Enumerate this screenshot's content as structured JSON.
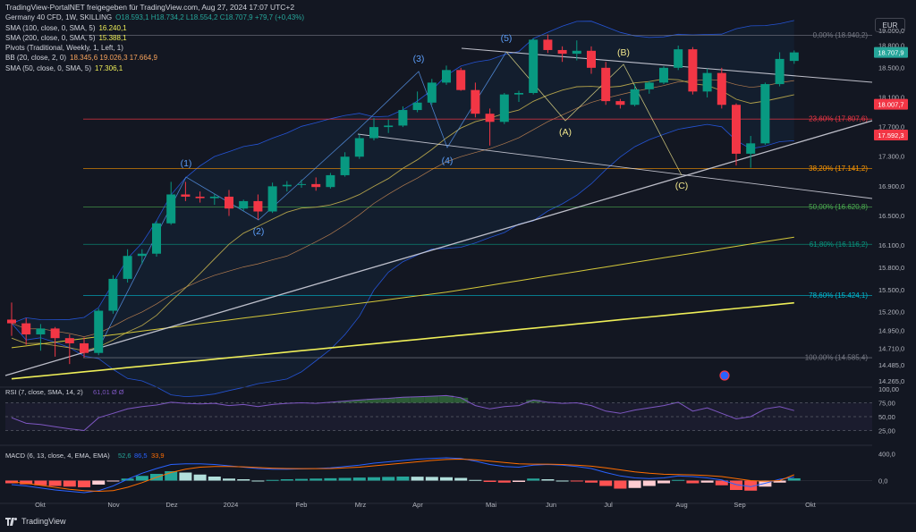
{
  "header": {
    "title": "TradingView-PortalNET freigegeben für TradingView.com, Aug 27, 2024 17:07 UTC+2",
    "legend": [
      {
        "label": "Germany 40 CFD, 1W, SKILLING",
        "values": "O18.593,1  H18.734,2  L18.554,2  C18.707,9  +79,7 (+0,43%)",
        "color": "#26a69a"
      },
      {
        "label": "SMA (100, close, 0, SMA, 5)",
        "values": "16.240,1",
        "color": "#eeee58"
      },
      {
        "label": "SMA (200, close, 0, SMA, 5)",
        "values": "15.388,1",
        "color": "#eeee58"
      },
      {
        "label": "Pivots (Traditional, Weekly, 1, Left, 1)",
        "values": "",
        "color": "#d1d4dc"
      },
      {
        "label": "BB (20, close, 2, 0)",
        "values": "18.345,6  19.026,3  17.664,9",
        "color": "#f7a35c"
      },
      {
        "label": "SMA (50, close, 0, SMA, 5)",
        "values": "17.306,1",
        "color": "#eeee58"
      }
    ]
  },
  "currency": "EUR",
  "footer": {
    "brand": "TradingView"
  },
  "chart_data": [
    {
      "type": "candlestick",
      "title": "Germany 40 CFD, 1W",
      "y_scale": "linear",
      "ylim": [
        14200,
        19150
      ],
      "x_labels": [
        "Okt",
        "Nov",
        "Dez",
        "2024",
        "Feb",
        "Mrz",
        "Apr",
        "Mai",
        "Jun",
        "Jul",
        "Aug",
        "Sep",
        "Okt"
      ],
      "y_ticks": [
        "19.000,0",
        "18.800,0",
        "18.500,0",
        "18.100,0",
        "17.700,0",
        "17.300,0",
        "16.900,0",
        "16.500,0",
        "16.100,0",
        "15.800,0",
        "15.500,0",
        "15.200,0",
        "14.950,0",
        "14.710,0",
        "14.485,0",
        "14.265,0"
      ],
      "price_labels": [
        {
          "value": "18.707,9",
          "color": "#26a69a"
        },
        {
          "value": "18.007,7",
          "color": "#f23645"
        },
        {
          "value": "17.592,3",
          "color": "#f23645"
        }
      ],
      "fibonacci": [
        {
          "label": "0,00% (18.940,2)",
          "color": "#787b86"
        },
        {
          "label": "23,60% (17.807,6)",
          "color": "#f23645"
        },
        {
          "label": "38,20% (17.141,2)",
          "color": "#ff9800"
        },
        {
          "label": "50,00% (16.620,8)",
          "color": "#4caf50"
        },
        {
          "label": "61,80% (16.116,2)",
          "color": "#089981"
        },
        {
          "label": "78,60% (15.424,1)",
          "color": "#00bcd4"
        },
        {
          "label": "100,00% (14.585,4)",
          "color": "#787b86"
        }
      ],
      "wave_labels": [
        {
          "text": "(1)",
          "color": "#5b9cf6"
        },
        {
          "text": "(2)",
          "color": "#5b9cf6"
        },
        {
          "text": "(3)",
          "color": "#5b9cf6"
        },
        {
          "text": "(4)",
          "color": "#5b9cf6"
        },
        {
          "text": "(5)",
          "color": "#5b9cf6"
        },
        {
          "text": "(A)",
          "color": "#f0e68c"
        },
        {
          "text": "(B)",
          "color": "#f0e68c"
        },
        {
          "text": "(C)",
          "color": "#f0e68c"
        }
      ],
      "candles": [
        [
          15100,
          15330,
          14880,
          15050
        ],
        [
          15050,
          15120,
          14760,
          14900
        ],
        [
          14900,
          15040,
          14680,
          14980
        ],
        [
          14980,
          15000,
          14600,
          14850
        ],
        [
          14850,
          14900,
          14500,
          14780
        ],
        [
          14780,
          14860,
          14590,
          14650
        ],
        [
          14650,
          15250,
          14620,
          15220
        ],
        [
          15220,
          15700,
          15180,
          15650
        ],
        [
          15650,
          16050,
          15600,
          15960
        ],
        [
          15960,
          16050,
          15850,
          15990
        ],
        [
          15990,
          16430,
          15950,
          16400
        ],
        [
          16400,
          16960,
          16380,
          16790
        ],
        [
          16790,
          16960,
          16700,
          16760
        ],
        [
          16760,
          16830,
          16680,
          16740
        ],
        [
          16740,
          16800,
          16650,
          16760
        ],
        [
          16760,
          16850,
          16500,
          16600
        ],
        [
          16600,
          16720,
          16570,
          16700
        ],
        [
          16700,
          16790,
          16450,
          16560
        ],
        [
          16560,
          16950,
          16540,
          16900
        ],
        [
          16900,
          16970,
          16830,
          16920
        ],
        [
          16920,
          16990,
          16880,
          16930
        ],
        [
          16930,
          17020,
          16840,
          16890
        ],
        [
          16890,
          17080,
          16870,
          17050
        ],
        [
          17050,
          17360,
          17030,
          17300
        ],
        [
          17300,
          17600,
          17270,
          17550
        ],
        [
          17550,
          17820,
          17520,
          17700
        ],
        [
          17700,
          17800,
          17620,
          17720
        ],
        [
          17720,
          17980,
          17700,
          17930
        ],
        [
          17930,
          18180,
          17900,
          18030
        ],
        [
          18030,
          18350,
          18000,
          18300
        ],
        [
          18300,
          18530,
          18270,
          18470
        ],
        [
          18470,
          18500,
          18190,
          18200
        ],
        [
          18200,
          18300,
          17830,
          17880
        ],
        [
          17880,
          17950,
          17450,
          17770
        ],
        [
          17770,
          18160,
          17740,
          18140
        ],
        [
          18140,
          18190,
          18040,
          18160
        ],
        [
          18160,
          18900,
          18140,
          18880
        ],
        [
          18880,
          18950,
          18700,
          18740
        ],
        [
          18740,
          18790,
          18580,
          18690
        ],
        [
          18690,
          18870,
          18600,
          18730
        ],
        [
          18730,
          18790,
          18420,
          18500
        ],
        [
          18500,
          18580,
          18000,
          18050
        ],
        [
          18050,
          18080,
          17950,
          18000
        ],
        [
          18000,
          18280,
          17980,
          18210
        ],
        [
          18210,
          18320,
          18150,
          18300
        ],
        [
          18300,
          18520,
          18280,
          18500
        ],
        [
          18500,
          18800,
          18470,
          18750
        ],
        [
          18750,
          18780,
          18140,
          18180
        ],
        [
          18180,
          18490,
          18100,
          18430
        ],
        [
          18430,
          18500,
          17950,
          18000
        ],
        [
          18000,
          18020,
          17180,
          17340
        ],
        [
          17340,
          17580,
          17150,
          17480
        ],
        [
          17480,
          18300,
          17460,
          18280
        ],
        [
          18280,
          18710,
          18250,
          18620
        ],
        [
          18593.1,
          18734.2,
          18554.2,
          18707.9
        ]
      ]
    },
    {
      "type": "line",
      "title": "RSI (7, close, SMA, 14, 2)",
      "legend_values": "61,01  Ø  Ø",
      "y_ticks": [
        "100,00",
        "75,00",
        "50,00",
        "25,00"
      ],
      "ylim": [
        0,
        100
      ],
      "values": [
        48,
        38,
        36,
        32,
        28,
        25,
        48,
        56,
        64,
        68,
        71,
        76,
        74,
        73,
        74,
        70,
        72,
        68,
        72,
        74,
        75,
        74,
        76,
        78,
        80,
        82,
        83,
        85,
        86,
        87,
        88,
        84,
        70,
        64,
        68,
        70,
        80,
        76,
        74,
        75,
        70,
        60,
        56,
        62,
        66,
        70,
        76,
        60,
        66,
        56,
        46,
        50,
        64,
        68,
        61
      ]
    },
    {
      "type": "bar",
      "title": "MACD (6, 13, close, 4, EMA, EMA)",
      "legend_values": [
        "52,6",
        "86,5",
        "33,9"
      ],
      "y_ticks": [
        "400,0",
        "0,0"
      ],
      "ylim": [
        -300,
        500
      ],
      "histogram": [
        -40,
        -55,
        -70,
        -80,
        -90,
        -100,
        -60,
        -10,
        30,
        70,
        100,
        140,
        120,
        90,
        60,
        30,
        20,
        0,
        10,
        20,
        25,
        30,
        35,
        40,
        45,
        50,
        55,
        60,
        58,
        55,
        50,
        40,
        10,
        -20,
        -30,
        -20,
        30,
        20,
        0,
        -10,
        -30,
        -80,
        -120,
        -110,
        -80,
        -40,
        10,
        -40,
        -30,
        -70,
        -140,
        -150,
        -90,
        -30,
        33.9
      ],
      "macd": [
        -60,
        -80,
        -110,
        -140,
        -160,
        -180,
        -150,
        -80,
        20,
        110,
        180,
        240,
        250,
        250,
        240,
        220,
        200,
        180,
        170,
        170,
        175,
        180,
        190,
        210,
        230,
        260,
        280,
        300,
        320,
        330,
        340,
        330,
        290,
        240,
        210,
        200,
        230,
        240,
        230,
        210,
        180,
        120,
        70,
        40,
        30,
        40,
        70,
        60,
        40,
        10,
        -60,
        -90,
        -40,
        20,
        52.6
      ],
      "signal": [
        -20,
        -40,
        -70,
        -100,
        -130,
        -150,
        -160,
        -150,
        -100,
        -30,
        50,
        120,
        170,
        200,
        210,
        210,
        205,
        195,
        185,
        180,
        178,
        178,
        180,
        190,
        200,
        220,
        240,
        260,
        280,
        300,
        315,
        320,
        310,
        290,
        270,
        250,
        245,
        245,
        240,
        230,
        215,
        190,
        160,
        130,
        110,
        95,
        90,
        85,
        75,
        60,
        30,
        0,
        -10,
        0,
        86.5
      ]
    }
  ]
}
